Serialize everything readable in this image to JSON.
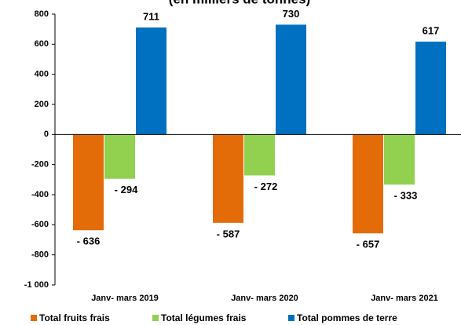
{
  "chart_data": {
    "type": "bar",
    "title": "(en milliers de tonnes)",
    "categories": [
      "Janv- mars 2019",
      "Janv- mars 2020",
      "Janv- mars 2021"
    ],
    "series": [
      {
        "name": "Total fruits frais",
        "color": "#e36c09",
        "values": [
          -636,
          -587,
          -657
        ],
        "value_labels": [
          "- 636",
          "- 587",
          "- 657"
        ]
      },
      {
        "name": "Total légumes frais",
        "color": "#92d050",
        "values": [
          -294,
          -272,
          -333
        ],
        "value_labels": [
          "- 294",
          "- 272",
          "- 333"
        ]
      },
      {
        "name": "Total pommes de terre",
        "color": "#0070c0",
        "values": [
          711,
          730,
          617
        ]
      }
    ],
    "ylim": [
      -1000,
      800
    ],
    "yticks": [
      {
        "value": -1000,
        "label": "-1 000"
      },
      -800,
      -600,
      -400,
      -200,
      0,
      200,
      400,
      600,
      800
    ],
    "legend": "bottom"
  }
}
